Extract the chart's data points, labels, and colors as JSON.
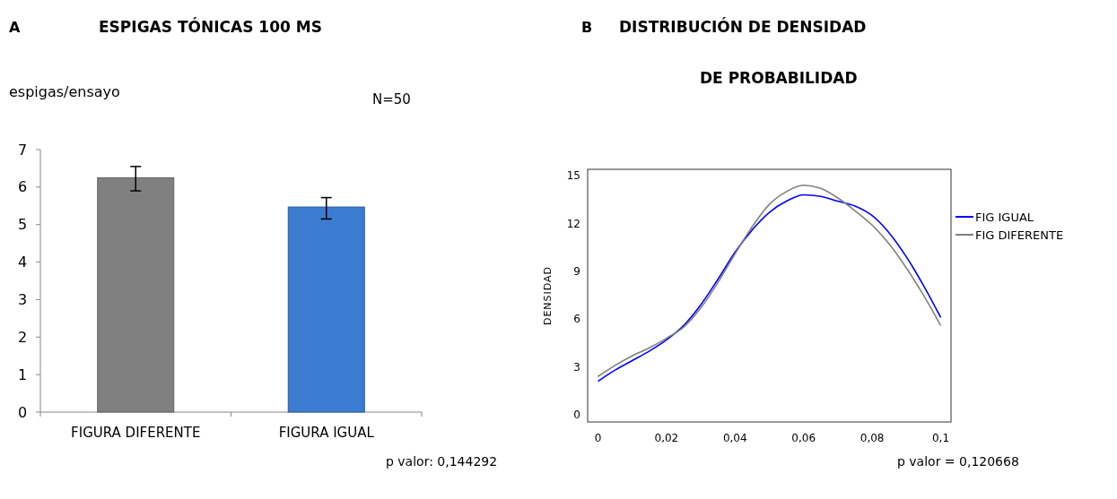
{
  "chart_data": [
    {
      "type": "bar",
      "title": "ESPIGAS TÓNICAS 100 MS",
      "ylabel": "espigas/ensayo",
      "categories": [
        "FIGURA DIFERENTE",
        "FIGURA IGUAL"
      ],
      "values": [
        6.25,
        5.47
      ],
      "colors": [
        "#808080",
        "#3b7bd0"
      ],
      "errors": [
        [
          5.9,
          6.55
        ],
        [
          5.15,
          5.72
        ]
      ],
      "ylim": [
        0,
        7
      ],
      "yticks": [
        0,
        1,
        2,
        3,
        4,
        5,
        6,
        7
      ],
      "grid": false,
      "annotations": [
        "A",
        "N=50",
        "p valor: 0,144292"
      ]
    },
    {
      "type": "line",
      "title": "DISTRIBUCIÓN DE DENSIDAD\nDE PROBABILIDAD",
      "ylabel": "DENSIDAD",
      "x": [
        0,
        0.005,
        0.01,
        0.015,
        0.02,
        0.025,
        0.03,
        0.035,
        0.04,
        0.045,
        0.05,
        0.055,
        0.06,
        0.065,
        0.07,
        0.075,
        0.08,
        0.085,
        0.09,
        0.095,
        0.1
      ],
      "series": [
        {
          "name": "FIG IGUAL",
          "color": "#0000ff",
          "values": [
            2.1,
            2.8,
            3.4,
            4.0,
            4.7,
            5.6,
            6.9,
            8.5,
            10.2,
            11.6,
            12.7,
            13.4,
            13.8,
            13.7,
            13.4,
            13.1,
            12.5,
            11.4,
            9.9,
            8.1,
            6.1
          ]
        },
        {
          "name": "FIG DIFERENTE",
          "color": "#808080",
          "values": [
            2.4,
            3.1,
            3.7,
            4.2,
            4.8,
            5.5,
            6.7,
            8.3,
            10.1,
            11.8,
            13.2,
            14.0,
            14.4,
            14.2,
            13.6,
            12.8,
            11.9,
            10.7,
            9.2,
            7.5,
            5.6
          ]
        }
      ],
      "xlim": [
        -0.003,
        0.103
      ],
      "xticks": [
        0,
        {
          "value": 0.02,
          "label": "0,02"
        },
        {
          "value": 0.04,
          "label": "0,04"
        },
        {
          "value": 0.06,
          "label": "0,06"
        },
        {
          "value": 0.08,
          "label": "0,08"
        },
        {
          "value": 0.1,
          "label": "0,1"
        }
      ],
      "ylim": [
        -0.45,
        15.4
      ],
      "yticks": [
        0,
        3,
        6,
        9,
        12,
        15
      ],
      "grid": false,
      "legend": "right",
      "marker": "none",
      "line_style": "solid",
      "annotations": [
        "B",
        "p valor = 0,120668"
      ]
    }
  ]
}
